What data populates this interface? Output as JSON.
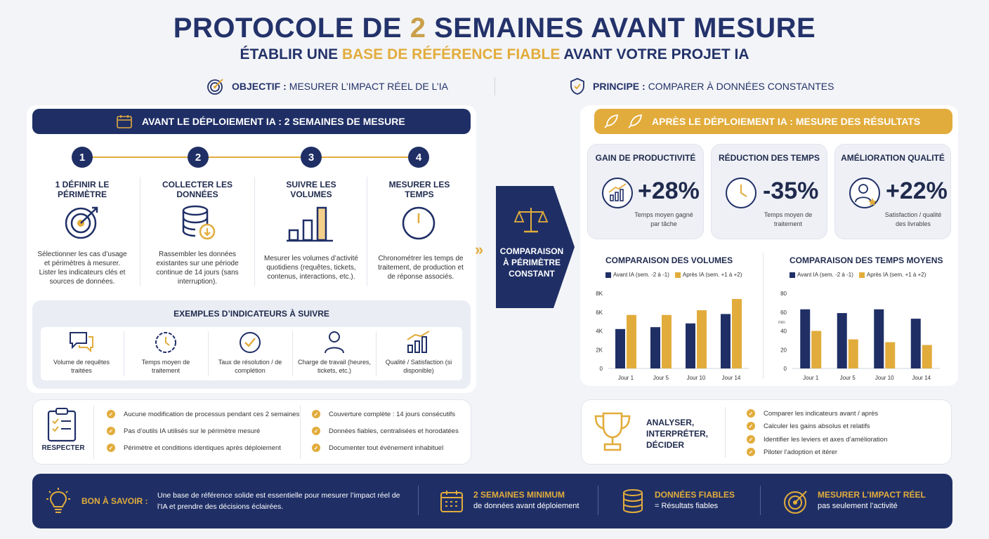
{
  "header": {
    "title_part1": "PROTOCOLE DE ",
    "title_num": "2",
    "title_part2": " SEMAINES AVANT MESURE",
    "subtitle_part1": "ÉTABLIR UNE ",
    "subtitle_hl": "BASE DE RÉFÉRENCE FIABLE",
    "subtitle_part2": " AVANT VOTRE PROJET IA",
    "objective_label": "OBJECTIF :",
    "objective_text": "MESURER L’IMPACT RÉEL DE L’IA",
    "principle_label": "PRINCIPE :",
    "principle_text": "COMPARER À DONNÉES CONSTANTES"
  },
  "before": {
    "band": "AVANT LE DÉPLOIEMENT IA : 2 SEMAINES DE MESURE",
    "steps": [
      {
        "num": "1",
        "title": "1 DÉFINIR LE PÉRIMÈTRE",
        "desc": "Sélectionner les cas d’usage et périmètres à mesurer. Lister les indicateurs clés et sources de données."
      },
      {
        "num": "2",
        "title": "COLLECTER LES DONNÉES",
        "desc": "Rassembler les données existantes sur une période continue de 14 jours (sans interruption)."
      },
      {
        "num": "3",
        "title": "SUIVRE LES VOLUMES",
        "desc": "Mesurer les volumes d’activité quotidiens (requêtes, tickets, contenus, interactions, etc.)."
      },
      {
        "num": "4",
        "title": "MESURER LES TEMPS",
        "desc": "Chronométrer les temps de traitement, de production et de réponse associés."
      }
    ],
    "indicators_title": "EXEMPLES D’INDICATEURS À SUIVRE",
    "indicators": [
      {
        "icon": "chat-icon",
        "label": "Volume de requêtes traitées"
      },
      {
        "icon": "stopwatch-icon",
        "label": "Temps moyen de traitement"
      },
      {
        "icon": "check-circle-icon",
        "label": "Taux de résolution / de complétion"
      },
      {
        "icon": "person-icon",
        "label": "Charge de travail (heures, tickets, etc.)"
      },
      {
        "icon": "growth-chart-icon",
        "label": "Qualité / Satisfaction (si disponible)"
      }
    ],
    "respect_label": "RESPECTER",
    "rules_left": [
      "Aucune modification de processus pendant ces 2 semaines",
      "Pas d’outils IA utilisés sur le périmètre mesuré",
      "Périmètre et conditions identiques après déploiement"
    ],
    "rules_right": [
      "Couverture complète : 14 jours consécutifs",
      "Données fiables, centralisées et horodatées",
      "Documenter tout événement inhabituel"
    ]
  },
  "compare": {
    "label_line1": "COMPARAISON",
    "label_line2": "À PÉRIMÈTRE",
    "label_line3": "CONSTANT"
  },
  "after": {
    "band": "APRÈS LE DÉPLOIEMENT IA : MESURE DES RÉSULTATS",
    "kpis": [
      {
        "title": "GAIN DE PRODUCTIVITÉ",
        "value": "+28%",
        "sub": "Temps moyen gagné par tâche",
        "icon": "productivity-chart-icon"
      },
      {
        "title": "RÉDUCTION DES TEMPS",
        "value": "-35%",
        "sub": "Temps moyen de traitement",
        "icon": "clock-icon"
      },
      {
        "title": "AMÉLIORATION QUALITÉ",
        "value": "+22%",
        "sub": "Satisfaction / qualité des livrables",
        "icon": "user-star-icon"
      }
    ],
    "analyze_line1": "ANALYSER,",
    "analyze_line2": "INTERPRÉTER,",
    "analyze_line3": "DÉCIDER",
    "actions": [
      "Comparer les indicateurs avant / après",
      "Calculer les gains absolus et relatifs",
      "Identifier les leviers et axes d’amélioration",
      "Piloter l’adoption et itérer"
    ]
  },
  "chart_data": [
    {
      "type": "bar",
      "title": "COMPARAISON DES VOLUMES",
      "categories": [
        "Jour 1",
        "Jour 5",
        "Jour 10",
        "Jour 14"
      ],
      "series": [
        {
          "name": "Avant IA (sem. -2 à -1)",
          "color": "#1f2f66",
          "values": [
            4.2,
            4.4,
            4.8,
            5.8
          ]
        },
        {
          "name": "Après IA (sem. +1 à +2)",
          "color": "#e2ac3c",
          "values": [
            5.7,
            5.7,
            6.2,
            7.4
          ]
        }
      ],
      "ylim": [
        0,
        8
      ],
      "yticks": [
        "0",
        "2K",
        "4K",
        "6K",
        "8K"
      ],
      "ytick_values": [
        0,
        2,
        4,
        6,
        8
      ]
    },
    {
      "type": "bar",
      "title": "COMPARAISON DES TEMPS MOYENS",
      "categories": [
        "Jour 1",
        "Jour 5",
        "Jour 10",
        "Jour 14"
      ],
      "series": [
        {
          "name": "Avant IA (sem. -2 à -1)",
          "color": "#1f2f66",
          "values": [
            63,
            59,
            63,
            53
          ]
        },
        {
          "name": "Après IA (sem. +1 à +2)",
          "color": "#e2ac3c",
          "values": [
            40,
            31,
            28,
            25
          ]
        }
      ],
      "ylim": [
        0,
        80
      ],
      "yticks": [
        "0",
        "20",
        "40",
        "60",
        "80"
      ],
      "ytick_values": [
        0,
        20,
        40,
        60,
        80
      ],
      "ylabel": "min"
    }
  ],
  "footer": {
    "tip_label": "BON À SAVOIR :",
    "tip_text": "Une base de référence solide est essentielle pour mesurer l’impact réel de l’IA et prendre des décisions éclairées.",
    "item1_title": "2 SEMAINES MINIMUM",
    "item1_sub": "de données avant déploiement",
    "item2_title": "DONNÉES FIABLES",
    "item2_sub": "= Résultats fiables",
    "item3_title": "MESURER L’IMPACT RÉEL",
    "item3_sub": "pas seulement l’activité"
  }
}
